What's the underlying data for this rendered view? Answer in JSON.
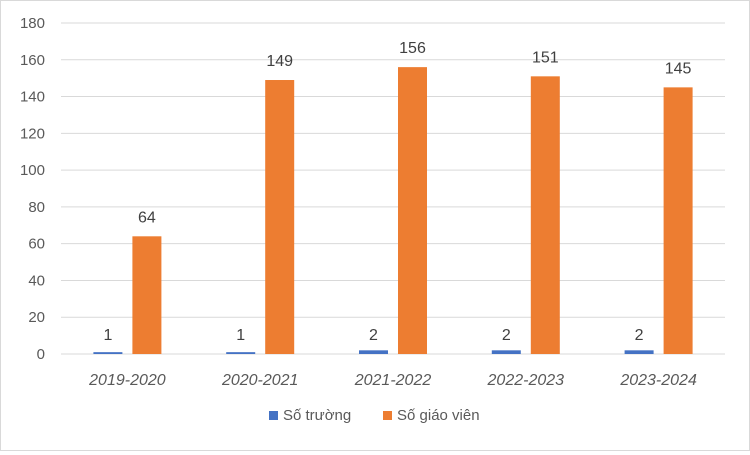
{
  "chart_data": {
    "type": "bar",
    "categories": [
      "2019-2020",
      "2020-2021",
      "2021-2022",
      "2022-2023",
      "2023-2024"
    ],
    "series": [
      {
        "name": "Số trường",
        "values": [
          1,
          1,
          2,
          2,
          2
        ],
        "color": "#4472c4"
      },
      {
        "name": "Số giáo viên",
        "values": [
          64,
          149,
          156,
          151,
          145
        ],
        "color": "#ed7d31"
      }
    ],
    "ylim": [
      0,
      180
    ],
    "yticks": [
      0,
      20,
      40,
      60,
      80,
      100,
      120,
      140,
      160,
      180
    ],
    "grid": true,
    "legend": "bottom",
    "data_labels": true
  }
}
